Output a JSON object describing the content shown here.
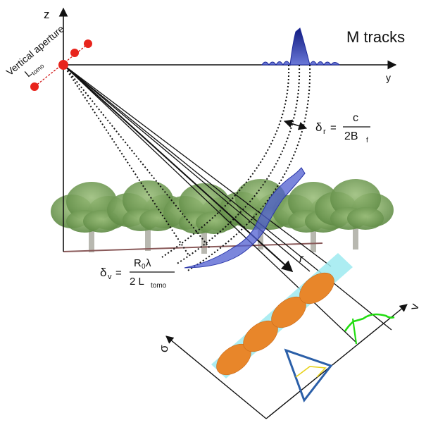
{
  "labels": {
    "z_axis": "z",
    "y_axis": "y",
    "r_axis": "r",
    "v_axis": "v",
    "sigma_axis": "σ",
    "m_tracks": "M tracks",
    "vertical_aperture": "Vertical aperture",
    "l_tomo": "L",
    "l_tomo_sub": "tomo"
  },
  "formulas": {
    "range_res": {
      "delta": "δ",
      "sub": "r",
      "eq": "=",
      "numerator": "c",
      "denominator": "2B",
      "den_sub": "f"
    },
    "vertical_res": {
      "delta": "δ",
      "sub": "v",
      "eq": "=",
      "numerator": "R",
      "num_sub": "0",
      "num_rest": " λ",
      "denominator": "2 L",
      "den_sub": "tomo"
    }
  },
  "colors": {
    "sensor": "#e8241c",
    "impulse": "#1e2a9a",
    "scatterer": "#e8862a",
    "beam": "#9eeaf0",
    "profile": "#22dd11",
    "triangle": "#2b5fa8",
    "tri_inner": "#e8d21c",
    "trees": "#6e9a4e",
    "ground": "#8a5a5a"
  },
  "icons": [
    "tree-icon",
    "scatterer-ellipse-icon",
    "impulse-response-icon"
  ]
}
